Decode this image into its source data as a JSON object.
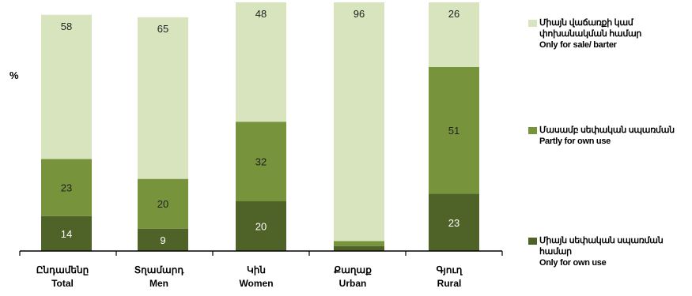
{
  "chart_data": {
    "type": "bar",
    "stacked": true,
    "unit_label": "%",
    "categories": [
      {
        "hy": "Ընդամենը",
        "en": "Total"
      },
      {
        "hy": "Տղամարդ",
        "en": "Men"
      },
      {
        "hy": "Կին",
        "en": "Women"
      },
      {
        "hy": "Քաղաք",
        "en": "Urban"
      },
      {
        "hy": "Գյուղ",
        "en": "Rural"
      }
    ],
    "series": [
      {
        "name_hy": "Միայն սեփական սպառման համար",
        "name_en": "Only for own use",
        "color": "#4f6228",
        "values": [
          14,
          9,
          20,
          2,
          23
        ],
        "labels": [
          "14",
          "9",
          "20",
          "",
          "23"
        ]
      },
      {
        "name_hy": "Մասամբ սեփական սպառման",
        "name_en": "Partly for own use",
        "color": "#77933c",
        "values": [
          23,
          20,
          32,
          2,
          51
        ],
        "labels": [
          "23",
          "20",
          "32",
          "",
          "51"
        ]
      },
      {
        "name_hy": "Միայն վաճառքի կամ փոխանակման համար",
        "name_en": "Only for sale/ barter",
        "color": "#d7e4bd",
        "values": [
          58,
          65,
          48,
          96,
          26
        ],
        "labels": [
          "58",
          "65",
          "48",
          "96",
          "26"
        ]
      }
    ],
    "legend_position": "right",
    "grid": false
  }
}
